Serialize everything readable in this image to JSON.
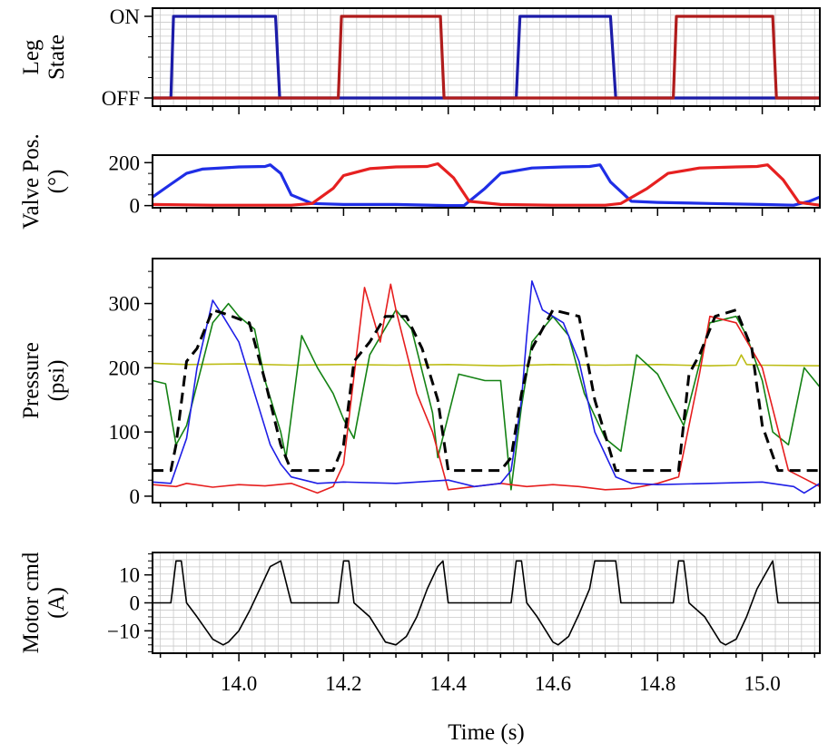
{
  "chart_data": [
    {
      "type": "line",
      "ylabel": [
        "Leg",
        "State"
      ],
      "xlim": [
        13.835,
        15.11
      ],
      "yticks": [
        0,
        1
      ],
      "yticklabels": [
        "OFF",
        "ON"
      ],
      "ylim": [
        -0.1,
        1.1
      ],
      "grid": true,
      "series": [
        {
          "color": "#1c1ca8",
          "x": [
            13.835,
            13.87,
            13.875,
            14.0,
            14.07,
            14.078,
            14.4,
            14.53,
            14.537,
            14.7,
            14.71,
            14.72,
            15.11
          ],
          "y": [
            0,
            0,
            1,
            1,
            1,
            0,
            0,
            0,
            1,
            1,
            1,
            0,
            0
          ]
        },
        {
          "color": "#b01c1c",
          "x": [
            13.835,
            14.19,
            14.196,
            14.3,
            14.385,
            14.392,
            14.7,
            14.83,
            14.836,
            15.0,
            15.02,
            15.027,
            15.11
          ],
          "y": [
            0,
            0,
            1,
            1,
            1,
            0,
            0,
            0,
            1,
            1,
            1,
            0,
            0
          ]
        }
      ]
    },
    {
      "type": "line",
      "ylabel": [
        "Valve Pos.",
        "(°)"
      ],
      "xlim": [
        13.835,
        15.11
      ],
      "yticks": [
        0,
        200
      ],
      "ylim": [
        -10,
        235
      ],
      "series": [
        {
          "color": "#1f2ee6",
          "x": [
            13.835,
            13.87,
            13.9,
            13.93,
            14.0,
            14.05,
            14.06,
            14.08,
            14.1,
            14.14,
            14.2,
            14.3,
            14.4,
            14.43,
            14.47,
            14.5,
            14.56,
            14.62,
            14.67,
            14.69,
            14.71,
            14.75,
            14.8,
            14.9,
            15.0,
            15.06,
            15.09,
            15.11
          ],
          "y": [
            40,
            100,
            150,
            170,
            180,
            182,
            190,
            150,
            50,
            10,
            5,
            5,
            0,
            0,
            80,
            150,
            175,
            180,
            182,
            190,
            110,
            20,
            15,
            10,
            5,
            2,
            20,
            40
          ]
        },
        {
          "color": "#e62020",
          "x": [
            13.835,
            13.95,
            14.1,
            14.14,
            14.18,
            14.2,
            14.25,
            14.3,
            14.36,
            14.38,
            14.41,
            14.44,
            14.5,
            14.6,
            14.7,
            14.73,
            14.78,
            14.82,
            14.88,
            14.95,
            14.99,
            15.01,
            15.04,
            15.07,
            15.11
          ],
          "y": [
            5,
            2,
            2,
            10,
            80,
            140,
            172,
            180,
            182,
            195,
            130,
            20,
            5,
            2,
            2,
            10,
            80,
            150,
            175,
            180,
            182,
            190,
            120,
            15,
            2
          ]
        }
      ]
    },
    {
      "type": "line",
      "ylabel": [
        "Pressure",
        "(psi)"
      ],
      "xlim": [
        13.835,
        15.11
      ],
      "yticks": [
        0,
        100,
        200,
        300
      ],
      "ylim": [
        -10,
        370
      ],
      "series": [
        {
          "color": "#bcbc14",
          "x": [
            13.835,
            13.9,
            14.0,
            14.1,
            14.2,
            14.3,
            14.4,
            14.5,
            14.6,
            14.7,
            14.8,
            14.9,
            14.95,
            14.96,
            14.97,
            15.0,
            15.11
          ],
          "y": [
            207,
            205,
            206,
            204,
            205,
            204,
            205,
            203,
            205,
            204,
            205,
            203,
            204,
            220,
            205,
            204,
            203
          ]
        },
        {
          "color": "#148214",
          "x": [
            13.835,
            13.86,
            13.88,
            13.9,
            13.95,
            13.98,
            14.0,
            14.03,
            14.05,
            14.08,
            14.09,
            14.12,
            14.15,
            14.18,
            14.2,
            14.22,
            14.25,
            14.3,
            14.33,
            14.37,
            14.38,
            14.42,
            14.47,
            14.5,
            14.52,
            14.54,
            14.56,
            14.6,
            14.63,
            14.66,
            14.7,
            14.73,
            14.76,
            14.8,
            14.85,
            14.9,
            14.95,
            14.97,
            15.0,
            15.02,
            15.05,
            15.08,
            15.11
          ],
          "y": [
            180,
            175,
            80,
            110,
            270,
            300,
            280,
            260,
            180,
            100,
            60,
            250,
            200,
            160,
            120,
            90,
            220,
            290,
            260,
            130,
            60,
            190,
            180,
            180,
            10,
            140,
            240,
            280,
            250,
            160,
            90,
            70,
            220,
            190,
            110,
            270,
            280,
            250,
            180,
            100,
            80,
            200,
            170
          ]
        },
        {
          "color": "#e61e1e",
          "x": [
            13.835,
            13.88,
            13.9,
            13.95,
            14.0,
            14.05,
            14.1,
            14.15,
            14.18,
            14.2,
            14.24,
            14.27,
            14.29,
            14.3,
            14.34,
            14.37,
            14.4,
            14.45,
            14.5,
            14.55,
            14.6,
            14.65,
            14.7,
            14.75,
            14.8,
            14.84,
            14.88,
            14.9,
            14.95,
            15.0,
            15.05,
            15.11
          ],
          "y": [
            18,
            15,
            20,
            14,
            18,
            16,
            20,
            5,
            15,
            50,
            325,
            240,
            330,
            290,
            160,
            100,
            10,
            15,
            20,
            15,
            18,
            15,
            10,
            12,
            20,
            30,
            190,
            280,
            270,
            200,
            40,
            15
          ]
        },
        {
          "color": "#1e1ee6",
          "x": [
            13.835,
            13.87,
            13.9,
            13.92,
            13.95,
            13.97,
            14.0,
            14.03,
            14.06,
            14.08,
            14.1,
            14.15,
            14.2,
            14.3,
            14.4,
            14.45,
            14.5,
            14.52,
            14.54,
            14.55,
            14.56,
            14.58,
            14.62,
            14.65,
            14.68,
            14.72,
            14.75,
            14.8,
            14.9,
            15.0,
            15.06,
            15.08,
            15.11
          ],
          "y": [
            22,
            20,
            90,
            200,
            305,
            280,
            240,
            160,
            80,
            50,
            30,
            20,
            22,
            20,
            25,
            15,
            20,
            40,
            150,
            250,
            335,
            290,
            270,
            210,
            100,
            30,
            20,
            18,
            20,
            22,
            15,
            5,
            20
          ]
        },
        {
          "color": "#000000",
          "dash": true,
          "x": [
            13.835,
            13.87,
            13.88,
            13.9,
            13.92,
            13.95,
            13.97,
            14.02,
            14.05,
            14.08,
            14.1,
            14.18,
            14.2,
            14.22,
            14.25,
            14.28,
            14.32,
            14.35,
            14.38,
            14.4,
            14.5,
            14.52,
            14.54,
            14.56,
            14.6,
            14.65,
            14.68,
            14.72,
            14.75,
            14.8,
            14.84,
            14.86,
            14.88,
            14.91,
            14.95,
            14.98,
            15.0,
            15.03,
            15.05,
            15.11
          ],
          "y": [
            40,
            40,
            80,
            210,
            230,
            290,
            285,
            270,
            180,
            80,
            40,
            40,
            80,
            210,
            240,
            280,
            280,
            230,
            150,
            40,
            40,
            60,
            160,
            230,
            290,
            280,
            150,
            40,
            40,
            40,
            40,
            190,
            220,
            280,
            290,
            230,
            110,
            40,
            40,
            40
          ]
        }
      ]
    },
    {
      "type": "line",
      "ylabel": [
        "Motor cmd",
        "(A)"
      ],
      "xlabel": "Time (s)",
      "xlim": [
        13.835,
        15.11
      ],
      "xticks": [
        14.0,
        14.2,
        14.4,
        14.6,
        14.8,
        15.0
      ],
      "xticklabels": [
        "14.0",
        "14.2",
        "14.4",
        "14.6",
        "14.8",
        "15.0"
      ],
      "yticks": [
        -10,
        0,
        10
      ],
      "yticklabels": [
        "−10",
        "0",
        "10"
      ],
      "ylim": [
        -18,
        18
      ],
      "grid": true,
      "series": [
        {
          "color": "#000000",
          "x": [
            13.835,
            13.87,
            13.88,
            13.89,
            13.9,
            13.92,
            13.95,
            13.97,
            13.98,
            14.0,
            14.02,
            14.04,
            14.06,
            14.08,
            14.1,
            14.18,
            14.19,
            14.2,
            14.21,
            14.22,
            14.25,
            14.28,
            14.3,
            14.32,
            14.34,
            14.36,
            14.38,
            14.39,
            14.4,
            14.5,
            14.52,
            14.53,
            14.54,
            14.55,
            14.57,
            14.6,
            14.61,
            14.63,
            14.65,
            14.67,
            14.68,
            14.72,
            14.73,
            14.8,
            14.83,
            14.84,
            14.85,
            14.86,
            14.89,
            14.92,
            14.93,
            14.95,
            14.97,
            14.99,
            15.02,
            15.03,
            15.11
          ],
          "y": [
            0,
            0,
            15,
            15,
            0,
            -5,
            -13,
            -15,
            -14,
            -10,
            -3,
            5,
            13,
            15,
            0,
            0,
            0,
            15,
            15,
            0,
            -5,
            -14,
            -15,
            -12,
            -5,
            5,
            13,
            15,
            0,
            0,
            0,
            15,
            15,
            0,
            -5,
            -14,
            -15,
            -12,
            -4,
            5,
            15,
            15,
            0,
            0,
            0,
            15,
            15,
            0,
            -5,
            -14,
            -15,
            -13,
            -5,
            5,
            15,
            0,
            0
          ]
        }
      ]
    }
  ]
}
